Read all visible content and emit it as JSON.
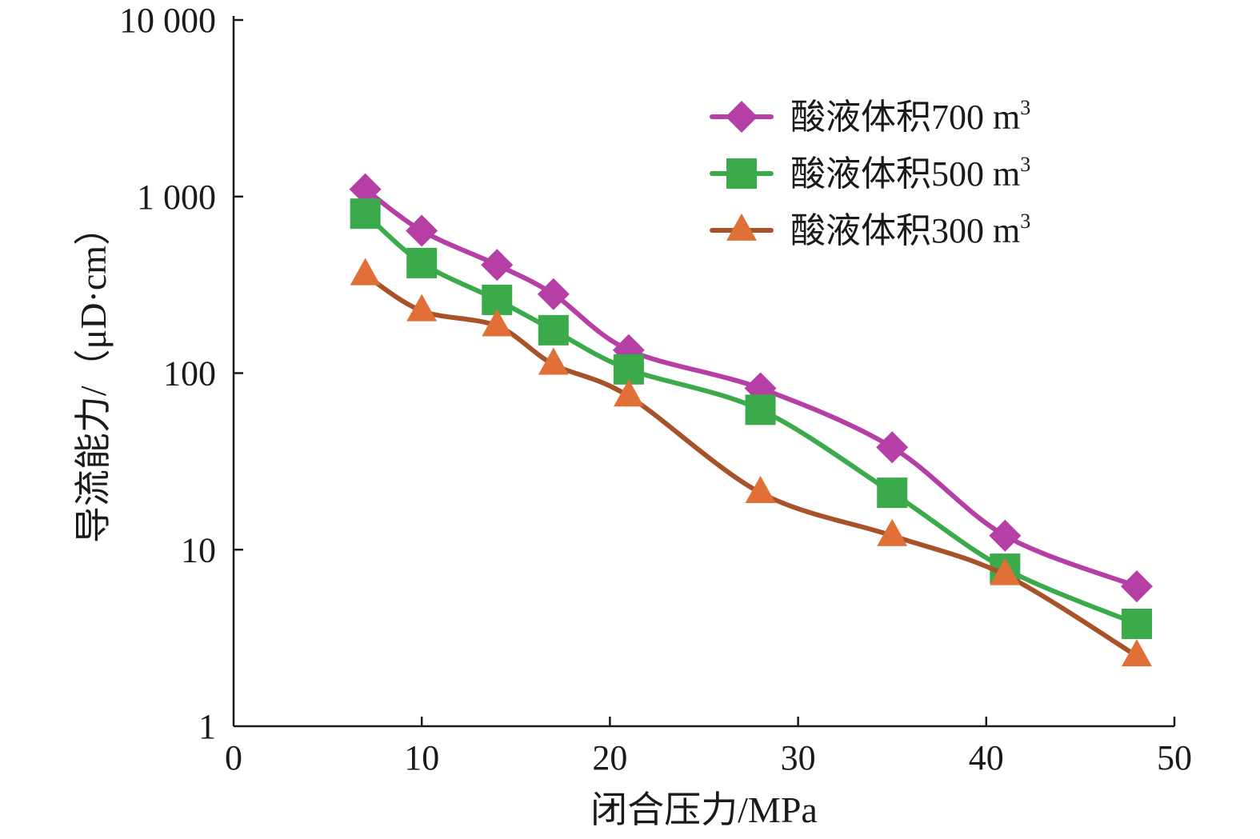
{
  "chart_data": {
    "type": "line",
    "title": "",
    "xlabel": "闭合压力/MPa",
    "ylabel": "导流能力/（μD·cm）",
    "xlim": [
      0,
      50
    ],
    "ylim": [
      1,
      10000
    ],
    "yscale": "log",
    "grid": false,
    "legend_position": "top-right",
    "x_ticks": [
      0,
      10,
      20,
      30,
      40,
      50
    ],
    "x_tick_labels": [
      "0",
      "10",
      "20",
      "30",
      "40",
      "50"
    ],
    "y_ticks": [
      1,
      10,
      100,
      1000,
      10000
    ],
    "y_tick_labels": [
      "1",
      "10",
      "100",
      "1 000",
      "10 000"
    ],
    "x": [
      7,
      10,
      14,
      17,
      21,
      28,
      35,
      41,
      48
    ],
    "series": [
      {
        "name": "酸液体积700 m",
        "name_sup": "3",
        "color": "#b53fa5",
        "marker": "diamond",
        "values": [
          1100,
          640,
          410,
          280,
          135,
          82,
          38,
          12,
          6.2
        ]
      },
      {
        "name": "酸液体积500 m",
        "name_sup": "3",
        "color": "#3aaa4a",
        "marker": "square",
        "values": [
          800,
          420,
          260,
          175,
          105,
          62,
          21,
          7.8,
          3.8
        ]
      },
      {
        "name": "酸液体积300 m",
        "name_sup": "3",
        "color": "#a8522a",
        "marker_color": "#e07038",
        "marker": "triangle",
        "values": [
          360,
          225,
          185,
          112,
          74,
          21,
          12,
          7.2,
          2.5
        ]
      }
    ]
  }
}
